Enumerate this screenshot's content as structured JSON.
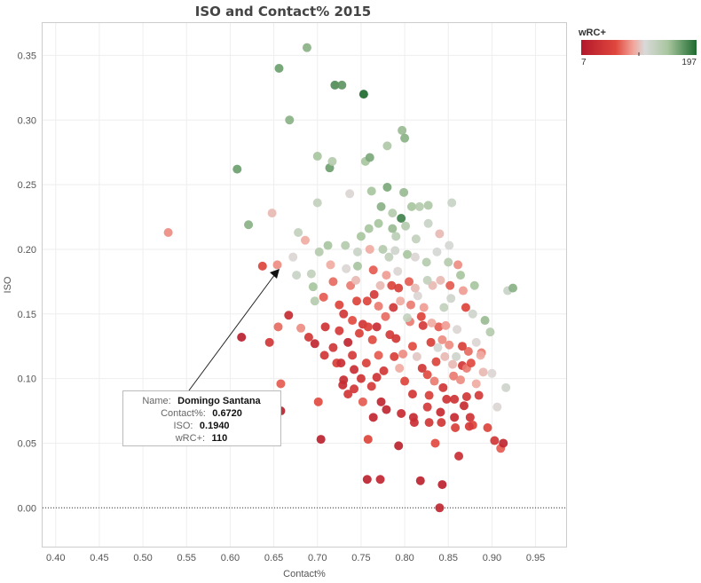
{
  "chart_data": {
    "type": "scatter",
    "title": "ISO and Contact% 2015",
    "xlabel": "Contact%",
    "ylabel": "ISO",
    "xlim": [
      0.385,
      0.985
    ],
    "ylim": [
      -0.03,
      0.375
    ],
    "xticks": [
      "0.40",
      "0.45",
      "0.50",
      "0.55",
      "0.60",
      "0.65",
      "0.70",
      "0.75",
      "0.80",
      "0.85",
      "0.90",
      "0.95"
    ],
    "yticks": [
      "0.00",
      "0.05",
      "0.10",
      "0.15",
      "0.20",
      "0.25",
      "0.30",
      "0.35"
    ],
    "color_legend": {
      "title": "wRC+",
      "min_label": "7",
      "max_label": "197",
      "min": 7,
      "max": 197,
      "colors": [
        "#b2182b",
        "#e0473d",
        "#f2a49a",
        "#d9d9d9",
        "#a9c6a0",
        "#1e6b2f"
      ]
    },
    "tooltip": {
      "name_key": "Name:",
      "name_val": "Domingo Santana",
      "contact_key": "Contact%:",
      "contact_val": "0.6720",
      "iso_key": "ISO:",
      "iso_val": "0.1940",
      "wrc_key": "wRC+:",
      "wrc_val": "110"
    },
    "points": [
      [
        0.529,
        0.213,
        85
      ],
      [
        0.608,
        0.262,
        170
      ],
      [
        0.613,
        0.132,
        15
      ],
      [
        0.621,
        0.219,
        160
      ],
      [
        0.637,
        0.187,
        60
      ],
      [
        0.645,
        0.128,
        45
      ],
      [
        0.648,
        0.228,
        100
      ],
      [
        0.654,
        0.188,
        85
      ],
      [
        0.656,
        0.34,
        170
      ],
      [
        0.658,
        0.096,
        70
      ],
      [
        0.658,
        0.075,
        20
      ],
      [
        0.655,
        0.14,
        75
      ],
      [
        0.668,
        0.3,
        160
      ],
      [
        0.667,
        0.149,
        30
      ],
      [
        0.672,
        0.194,
        110
      ],
      [
        0.676,
        0.18,
        125
      ],
      [
        0.678,
        0.213,
        130
      ],
      [
        0.681,
        0.139,
        85
      ],
      [
        0.688,
        0.356,
        160
      ],
      [
        0.686,
        0.207,
        95
      ],
      [
        0.69,
        0.132,
        45
      ],
      [
        0.693,
        0.181,
        130
      ],
      [
        0.695,
        0.171,
        150
      ],
      [
        0.697,
        0.16,
        140
      ],
      [
        0.7,
        0.272,
        150
      ],
      [
        0.7,
        0.236,
        130
      ],
      [
        0.702,
        0.198,
        140
      ],
      [
        0.701,
        0.082,
        65
      ],
      [
        0.704,
        0.053,
        20
      ],
      [
        0.707,
        0.163,
        70
      ],
      [
        0.709,
        0.14,
        40
      ],
      [
        0.712,
        0.203,
        150
      ],
      [
        0.714,
        0.263,
        170
      ],
      [
        0.715,
        0.188,
        95
      ],
      [
        0.717,
        0.268,
        140
      ],
      [
        0.718,
        0.175,
        75
      ],
      [
        0.72,
        0.327,
        180
      ],
      [
        0.722,
        0.112,
        55
      ],
      [
        0.725,
        0.157,
        60
      ],
      [
        0.728,
        0.327,
        175
      ],
      [
        0.73,
        0.099,
        30
      ],
      [
        0.73,
        0.15,
        45
      ],
      [
        0.732,
        0.203,
        140
      ],
      [
        0.735,
        0.128,
        25
      ],
      [
        0.737,
        0.243,
        110
      ],
      [
        0.738,
        0.172,
        80
      ],
      [
        0.74,
        0.145,
        65
      ],
      [
        0.742,
        0.092,
        45
      ],
      [
        0.744,
        0.176,
        100
      ],
      [
        0.746,
        0.187,
        150
      ],
      [
        0.748,
        0.135,
        55
      ],
      [
        0.75,
        0.21,
        150
      ],
      [
        0.752,
        0.142,
        45
      ],
      [
        0.753,
        0.32,
        197
      ],
      [
        0.755,
        0.268,
        150
      ],
      [
        0.756,
        0.112,
        55
      ],
      [
        0.757,
        0.022,
        20
      ],
      [
        0.758,
        0.053,
        60
      ],
      [
        0.76,
        0.2,
        95
      ],
      [
        0.76,
        0.271,
        165
      ],
      [
        0.762,
        0.245,
        150
      ],
      [
        0.764,
        0.184,
        70
      ],
      [
        0.765,
        0.165,
        50
      ],
      [
        0.768,
        0.101,
        40
      ],
      [
        0.77,
        0.22,
        150
      ],
      [
        0.77,
        0.156,
        80
      ],
      [
        0.772,
        0.022,
        25
      ],
      [
        0.773,
        0.082,
        25
      ],
      [
        0.775,
        0.2,
        140
      ],
      [
        0.778,
        0.148,
        75
      ],
      [
        0.78,
        0.28,
        145
      ],
      [
        0.78,
        0.248,
        165
      ],
      [
        0.782,
        0.194,
        130
      ],
      [
        0.785,
        0.172,
        60
      ],
      [
        0.786,
        0.228,
        140
      ],
      [
        0.788,
        0.117,
        55
      ],
      [
        0.79,
        0.21,
        135
      ],
      [
        0.79,
        0.131,
        45
      ],
      [
        0.792,
        0.183,
        110
      ],
      [
        0.793,
        0.048,
        20
      ],
      [
        0.795,
        0.16,
        95
      ],
      [
        0.796,
        0.224,
        185
      ],
      [
        0.797,
        0.292,
        155
      ],
      [
        0.8,
        0.286,
        160
      ],
      [
        0.8,
        0.098,
        60
      ],
      [
        0.803,
        0.196,
        150
      ],
      [
        0.805,
        0.175,
        70
      ],
      [
        0.806,
        0.144,
        80
      ],
      [
        0.808,
        0.233,
        150
      ],
      [
        0.809,
        0.125,
        65
      ],
      [
        0.81,
        0.07,
        30
      ],
      [
        0.812,
        0.194,
        110
      ],
      [
        0.815,
        0.164,
        110
      ],
      [
        0.817,
        0.233,
        140
      ],
      [
        0.818,
        0.021,
        20
      ],
      [
        0.82,
        0.108,
        45
      ],
      [
        0.822,
        0.155,
        90
      ],
      [
        0.825,
        0.19,
        140
      ],
      [
        0.827,
        0.234,
        145
      ],
      [
        0.828,
        0.066,
        45
      ],
      [
        0.83,
        0.128,
        55
      ],
      [
        0.832,
        0.172,
        100
      ],
      [
        0.834,
        0.098,
        80
      ],
      [
        0.835,
        0.05,
        65
      ],
      [
        0.837,
        0.198,
        115
      ],
      [
        0.839,
        0.14,
        70
      ],
      [
        0.84,
        0.0,
        25
      ],
      [
        0.841,
        0.074,
        30
      ],
      [
        0.843,
        0.018,
        20
      ],
      [
        0.845,
        0.155,
        130
      ],
      [
        0.846,
        0.117,
        100
      ],
      [
        0.848,
        0.084,
        40
      ],
      [
        0.85,
        0.19,
        140
      ],
      [
        0.852,
        0.172,
        70
      ],
      [
        0.854,
        0.236,
        125
      ],
      [
        0.856,
        0.102,
        80
      ],
      [
        0.858,
        0.062,
        55
      ],
      [
        0.86,
        0.138,
        110
      ],
      [
        0.862,
        0.04,
        35
      ],
      [
        0.864,
        0.18,
        150
      ],
      [
        0.866,
        0.11,
        45
      ],
      [
        0.868,
        0.079,
        30
      ],
      [
        0.87,
        0.155,
        60
      ],
      [
        0.873,
        0.121,
        75
      ],
      [
        0.875,
        0.07,
        40
      ],
      [
        0.878,
        0.15,
        120
      ],
      [
        0.88,
        0.172,
        150
      ],
      [
        0.882,
        0.096,
        95
      ],
      [
        0.885,
        0.087,
        50
      ],
      [
        0.888,
        0.12,
        80
      ],
      [
        0.89,
        0.105,
        100
      ],
      [
        0.892,
        0.145,
        155
      ],
      [
        0.895,
        0.062,
        60
      ],
      [
        0.898,
        0.136,
        140
      ],
      [
        0.9,
        0.104,
        110
      ],
      [
        0.903,
        0.052,
        45
      ],
      [
        0.906,
        0.078,
        110
      ],
      [
        0.91,
        0.046,
        70
      ],
      [
        0.913,
        0.05,
        25
      ],
      [
        0.916,
        0.093,
        120
      ],
      [
        0.918,
        0.168,
        125
      ],
      [
        0.924,
        0.17,
        160
      ],
      [
        0.74,
        0.118,
        50
      ],
      [
        0.752,
        0.082,
        70
      ],
      [
        0.763,
        0.13,
        65
      ],
      [
        0.776,
        0.106,
        45
      ],
      [
        0.787,
        0.155,
        45
      ],
      [
        0.798,
        0.119,
        85
      ],
      [
        0.809,
        0.088,
        45
      ],
      [
        0.821,
        0.141,
        50
      ],
      [
        0.828,
        0.087,
        55
      ],
      [
        0.836,
        0.113,
        60
      ],
      [
        0.844,
        0.093,
        45
      ],
      [
        0.851,
        0.126,
        85
      ],
      [
        0.857,
        0.084,
        40
      ],
      [
        0.864,
        0.099,
        85
      ],
      [
        0.871,
        0.086,
        45
      ],
      [
        0.878,
        0.064,
        60
      ],
      [
        0.725,
        0.137,
        50
      ],
      [
        0.735,
        0.088,
        45
      ],
      [
        0.745,
        0.16,
        60
      ],
      [
        0.762,
        0.094,
        50
      ],
      [
        0.77,
        0.118,
        70
      ],
      [
        0.783,
        0.134,
        50
      ],
      [
        0.794,
        0.108,
        95
      ],
      [
        0.803,
        0.147,
        130
      ],
      [
        0.814,
        0.117,
        105
      ],
      [
        0.826,
        0.103,
        65
      ],
      [
        0.838,
        0.124,
        115
      ],
      [
        0.847,
        0.141,
        90
      ],
      [
        0.859,
        0.117,
        120
      ],
      [
        0.871,
        0.108,
        80
      ],
      [
        0.882,
        0.128,
        110
      ],
      [
        0.75,
        0.1,
        40
      ],
      [
        0.718,
        0.124,
        45
      ],
      [
        0.727,
        0.112,
        35
      ],
      [
        0.708,
        0.118,
        45
      ],
      [
        0.697,
        0.127,
        25
      ],
      [
        0.772,
        0.172,
        100
      ],
      [
        0.789,
        0.199,
        120
      ],
      [
        0.801,
        0.218,
        140
      ],
      [
        0.812,
        0.17,
        100
      ],
      [
        0.826,
        0.176,
        130
      ],
      [
        0.841,
        0.176,
        100
      ],
      [
        0.853,
        0.162,
        120
      ],
      [
        0.867,
        0.168,
        90
      ],
      [
        0.757,
        0.16,
        60
      ],
      [
        0.768,
        0.14,
        35
      ],
      [
        0.779,
        0.18,
        90
      ],
      [
        0.793,
        0.17,
        55
      ],
      [
        0.807,
        0.157,
        80
      ],
      [
        0.819,
        0.148,
        60
      ],
      [
        0.831,
        0.143,
        95
      ],
      [
        0.843,
        0.13,
        85
      ],
      [
        0.855,
        0.111,
        100
      ],
      [
        0.866,
        0.125,
        55
      ],
      [
        0.876,
        0.112,
        65
      ],
      [
        0.887,
        0.118,
        95
      ],
      [
        0.733,
        0.185,
        110
      ],
      [
        0.746,
        0.198,
        125
      ],
      [
        0.759,
        0.216,
        150
      ],
      [
        0.773,
        0.233,
        160
      ],
      [
        0.786,
        0.216,
        155
      ],
      [
        0.799,
        0.244,
        155
      ],
      [
        0.813,
        0.208,
        130
      ],
      [
        0.827,
        0.22,
        125
      ],
      [
        0.84,
        0.212,
        100
      ],
      [
        0.851,
        0.203,
        115
      ],
      [
        0.861,
        0.188,
        85
      ],
      [
        0.758,
        0.14,
        55
      ],
      [
        0.742,
        0.107,
        35
      ],
      [
        0.729,
        0.095,
        30
      ],
      [
        0.764,
        0.07,
        25
      ],
      [
        0.779,
        0.076,
        25
      ],
      [
        0.796,
        0.073,
        30
      ],
      [
        0.811,
        0.066,
        35
      ],
      [
        0.826,
        0.078,
        50
      ],
      [
        0.842,
        0.066,
        45
      ],
      [
        0.857,
        0.07,
        30
      ],
      [
        0.874,
        0.063,
        50
      ]
    ]
  }
}
